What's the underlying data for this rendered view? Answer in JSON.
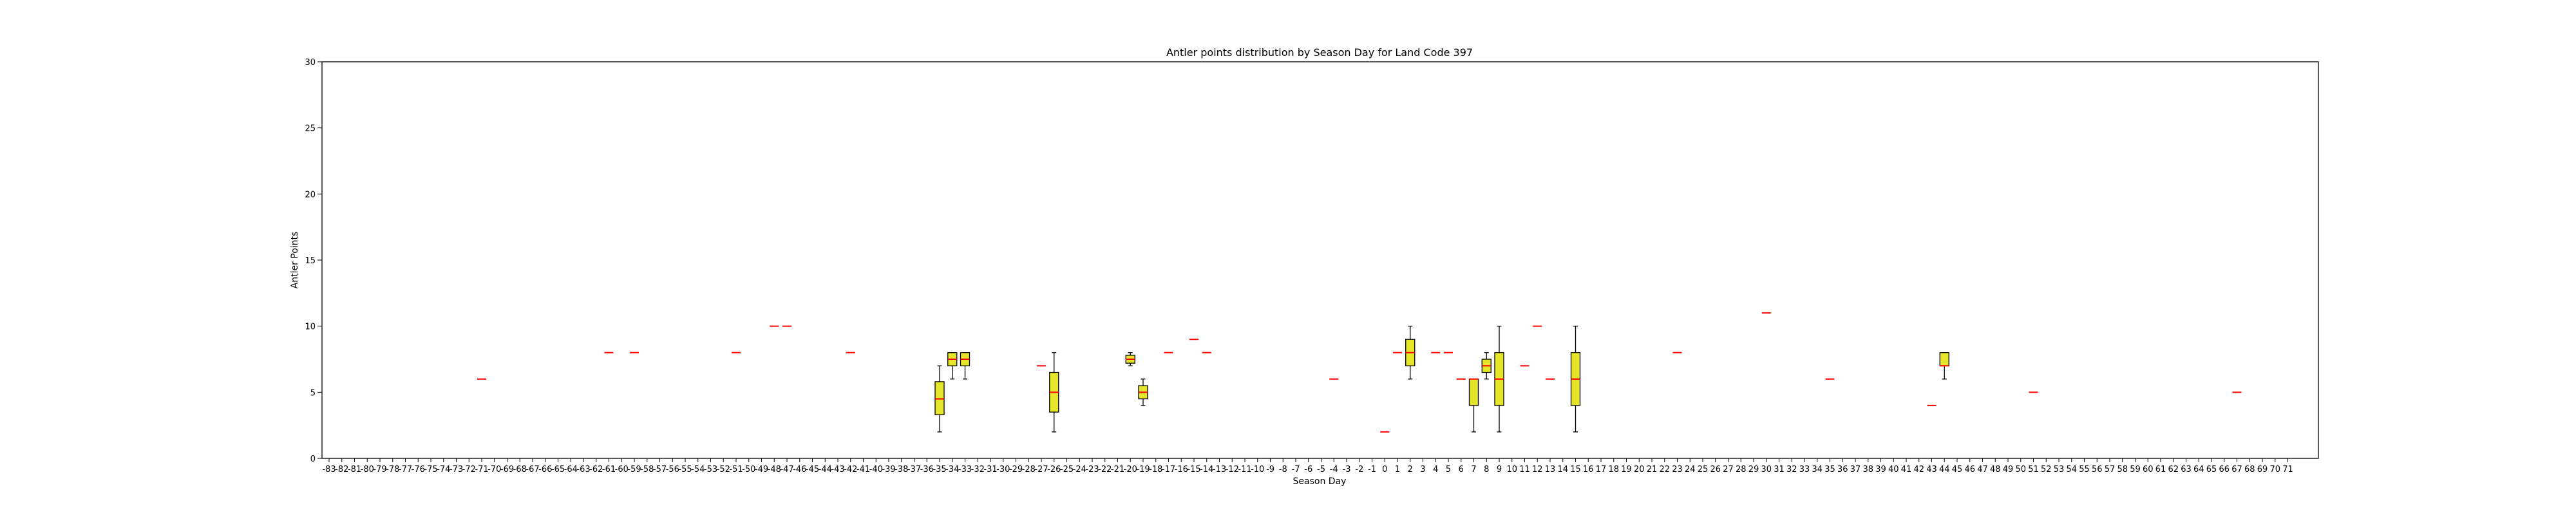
{
  "chart_data": {
    "type": "box",
    "title": "Antler points distribution by Season Day for Land Code 397",
    "xlabel": "Season Day",
    "ylabel": "Antler Points",
    "ylim": [
      0,
      30
    ],
    "yticks": [
      0,
      5,
      10,
      15,
      20,
      25,
      30
    ],
    "x_start": -83,
    "x_end": 71,
    "grid": false,
    "colors": {
      "box_fill": "#e5e52a",
      "box_edge": "#000000",
      "median": "#ff0000",
      "whisker": "#000000"
    },
    "boxes": [
      {
        "day": -71,
        "q1": 6,
        "median": 6,
        "q3": 6,
        "low": 6,
        "high": 6
      },
      {
        "day": -61,
        "q1": 8,
        "median": 8,
        "q3": 8,
        "low": 8,
        "high": 8
      },
      {
        "day": -59,
        "q1": 8,
        "median": 8,
        "q3": 8,
        "low": 8,
        "high": 8
      },
      {
        "day": -51,
        "q1": 8,
        "median": 8,
        "q3": 8,
        "low": 8,
        "high": 8
      },
      {
        "day": -48,
        "q1": 10,
        "median": 10,
        "q3": 10,
        "low": 10,
        "high": 10
      },
      {
        "day": -47,
        "q1": 10,
        "median": 10,
        "q3": 10,
        "low": 10,
        "high": 10
      },
      {
        "day": -42,
        "q1": 8,
        "median": 8,
        "q3": 8,
        "low": 8,
        "high": 8
      },
      {
        "day": -35,
        "q1": 3.3,
        "median": 4.5,
        "q3": 5.8,
        "low": 2,
        "high": 7
      },
      {
        "day": -34,
        "q1": 7,
        "median": 7.5,
        "q3": 8,
        "low": 6,
        "high": 8
      },
      {
        "day": -33,
        "q1": 7,
        "median": 7.5,
        "q3": 8,
        "low": 6,
        "high": 8
      },
      {
        "day": -27,
        "q1": 7,
        "median": 7,
        "q3": 7,
        "low": 7,
        "high": 7
      },
      {
        "day": -26,
        "q1": 3.5,
        "median": 5,
        "q3": 6.5,
        "low": 2,
        "high": 8
      },
      {
        "day": -20,
        "q1": 7.2,
        "median": 7.5,
        "q3": 7.8,
        "low": 7,
        "high": 8
      },
      {
        "day": -19,
        "q1": 4.5,
        "median": 5,
        "q3": 5.5,
        "low": 4,
        "high": 6
      },
      {
        "day": -17,
        "q1": 8,
        "median": 8,
        "q3": 8,
        "low": 8,
        "high": 8
      },
      {
        "day": -15,
        "q1": 9,
        "median": 9,
        "q3": 9,
        "low": 9,
        "high": 9
      },
      {
        "day": -14,
        "q1": 8,
        "median": 8,
        "q3": 8,
        "low": 8,
        "high": 8
      },
      {
        "day": -4,
        "q1": 6,
        "median": 6,
        "q3": 6,
        "low": 6,
        "high": 6
      },
      {
        "day": 0,
        "q1": 2,
        "median": 2,
        "q3": 2,
        "low": 2,
        "high": 2
      },
      {
        "day": 1,
        "q1": 8,
        "median": 8,
        "q3": 8,
        "low": 8,
        "high": 8
      },
      {
        "day": 2,
        "q1": 7,
        "median": 8,
        "q3": 9,
        "low": 6,
        "high": 10
      },
      {
        "day": 4,
        "q1": 8,
        "median": 8,
        "q3": 8,
        "low": 8,
        "high": 8
      },
      {
        "day": 5,
        "q1": 8,
        "median": 8,
        "q3": 8,
        "low": 8,
        "high": 8
      },
      {
        "day": 6,
        "q1": 6,
        "median": 6,
        "q3": 6,
        "low": 6,
        "high": 6
      },
      {
        "day": 7,
        "q1": 4,
        "median": 6,
        "q3": 6,
        "low": 2,
        "high": 6
      },
      {
        "day": 8,
        "q1": 6.5,
        "median": 7,
        "q3": 7.5,
        "low": 6,
        "high": 8
      },
      {
        "day": 9,
        "q1": 4,
        "median": 6,
        "q3": 8,
        "low": 2,
        "high": 10
      },
      {
        "day": 11,
        "q1": 7,
        "median": 7,
        "q3": 7,
        "low": 7,
        "high": 7
      },
      {
        "day": 12,
        "q1": 10,
        "median": 10,
        "q3": 10,
        "low": 10,
        "high": 10
      },
      {
        "day": 13,
        "q1": 6,
        "median": 6,
        "q3": 6,
        "low": 6,
        "high": 6
      },
      {
        "day": 15,
        "q1": 4,
        "median": 6,
        "q3": 8,
        "low": 2,
        "high": 10
      },
      {
        "day": 23,
        "q1": 8,
        "median": 8,
        "q3": 8,
        "low": 8,
        "high": 8
      },
      {
        "day": 30,
        "q1": 11,
        "median": 11,
        "q3": 11,
        "low": 11,
        "high": 11
      },
      {
        "day": 35,
        "q1": 6,
        "median": 6,
        "q3": 6,
        "low": 6,
        "high": 6
      },
      {
        "day": 43,
        "q1": 4,
        "median": 4,
        "q3": 4,
        "low": 4,
        "high": 4
      },
      {
        "day": 44,
        "q1": 7,
        "median": 7,
        "q3": 8,
        "low": 6,
        "high": 8
      },
      {
        "day": 51,
        "q1": 5,
        "median": 5,
        "q3": 5,
        "low": 5,
        "high": 5
      },
      {
        "day": 67,
        "q1": 5,
        "median": 5,
        "q3": 5,
        "low": 5,
        "high": 5
      }
    ]
  }
}
